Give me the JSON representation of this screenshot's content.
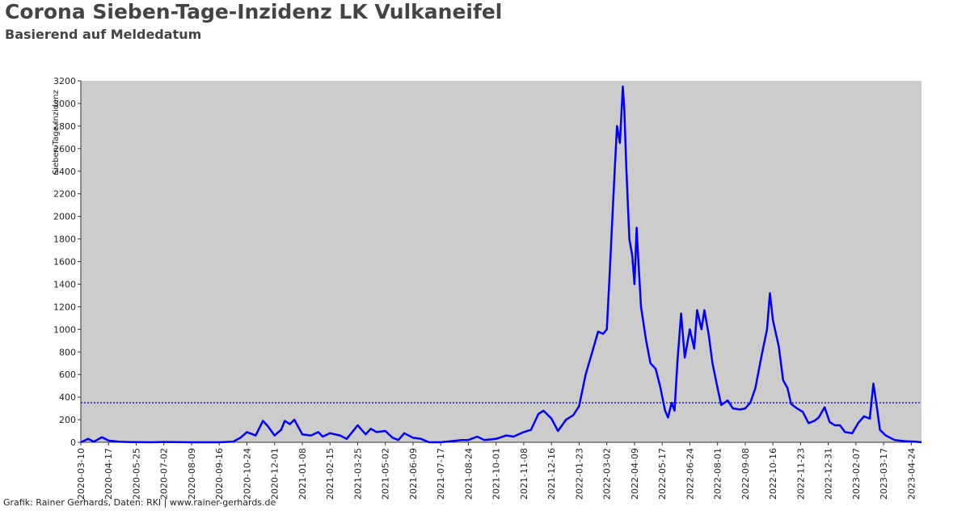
{
  "chart_data": {
    "type": "line",
    "title": "Corona Sieben-Tage-Inzidenz LK Vulkaneifel",
    "subtitle": "Basierend auf Meldedatum",
    "y_label": "Sieben-Tage-Inzidenz",
    "source": "Grafik: Rainer Gerhards, Daten: RKI | www.rainer-gerhards.de",
    "color": "#0000ff",
    "hline": 350,
    "hline_color": "#0000aa",
    "x": [
      "2020-03-10",
      "2020-03-20",
      "2020-03-28",
      "2020-04-08",
      "2020-04-17",
      "2020-05-01",
      "2020-05-15",
      "2020-06-15",
      "2020-07-02",
      "2020-08-09",
      "2020-09-16",
      "2020-10-05",
      "2020-10-15",
      "2020-10-24",
      "2020-11-05",
      "2020-11-15",
      "2020-11-22",
      "2020-12-01",
      "2020-12-10",
      "2020-12-15",
      "2020-12-22",
      "2020-12-28",
      "2021-01-08",
      "2021-01-20",
      "2021-01-30",
      "2021-02-05",
      "2021-02-15",
      "2021-03-01",
      "2021-03-10",
      "2021-03-20",
      "2021-03-25",
      "2021-04-05",
      "2021-04-12",
      "2021-04-20",
      "2021-05-02",
      "2021-05-12",
      "2021-05-20",
      "2021-05-28",
      "2021-06-09",
      "2021-06-20",
      "2021-07-01",
      "2021-07-17",
      "2021-08-01",
      "2021-08-15",
      "2021-08-24",
      "2021-09-05",
      "2021-09-15",
      "2021-10-01",
      "2021-10-15",
      "2021-10-25",
      "2021-11-08",
      "2021-11-18",
      "2021-11-28",
      "2021-12-05",
      "2021-12-16",
      "2021-12-25",
      "2022-01-05",
      "2022-01-15",
      "2022-01-23",
      "2022-02-01",
      "2022-02-10",
      "2022-02-18",
      "2022-02-25",
      "2022-03-02",
      "2022-03-06",
      "2022-03-12",
      "2022-03-16",
      "2022-03-20",
      "2022-03-24",
      "2022-03-26",
      "2022-03-29",
      "2022-04-02",
      "2022-04-06",
      "2022-04-09",
      "2022-04-12",
      "2022-04-14",
      "2022-04-18",
      "2022-04-25",
      "2022-05-01",
      "2022-05-08",
      "2022-05-14",
      "2022-05-21",
      "2022-05-25",
      "2022-05-30",
      "2022-06-03",
      "2022-06-07",
      "2022-06-12",
      "2022-06-17",
      "2022-06-24",
      "2022-06-30",
      "2022-07-04",
      "2022-07-10",
      "2022-07-14",
      "2022-07-20",
      "2022-07-25",
      "2022-08-01",
      "2022-08-06",
      "2022-08-15",
      "2022-08-22",
      "2022-09-01",
      "2022-09-08",
      "2022-09-15",
      "2022-09-22",
      "2022-09-30",
      "2022-10-08",
      "2022-10-12",
      "2022-10-16",
      "2022-10-24",
      "2022-10-30",
      "2022-11-05",
      "2022-11-10",
      "2022-11-18",
      "2022-11-26",
      "2022-12-04",
      "2022-12-12",
      "2022-12-18",
      "2022-12-26",
      "2023-01-02",
      "2023-01-09",
      "2023-01-16",
      "2023-01-23",
      "2023-02-02",
      "2023-02-10",
      "2023-02-18",
      "2023-02-26",
      "2023-03-03",
      "2023-03-08",
      "2023-03-12",
      "2023-03-20",
      "2023-04-01",
      "2023-04-15",
      "2023-04-30",
      "2023-05-08"
    ],
    "values": [
      0,
      30,
      5,
      45,
      15,
      5,
      2,
      0,
      3,
      0,
      0,
      5,
      40,
      90,
      60,
      190,
      140,
      60,
      110,
      190,
      160,
      200,
      70,
      60,
      90,
      50,
      80,
      60,
      30,
      110,
      150,
      70,
      120,
      90,
      100,
      40,
      20,
      80,
      40,
      30,
      0,
      0,
      10,
      20,
      20,
      50,
      20,
      30,
      60,
      50,
      90,
      110,
      250,
      280,
      210,
      100,
      200,
      240,
      320,
      600,
      800,
      980,
      960,
      1000,
      1500,
      2300,
      2800,
      2650,
      3150,
      2950,
      2400,
      1800,
      1650,
      1400,
      1900,
      1650,
      1200,
      900,
      700,
      650,
      500,
      280,
      220,
      350,
      280,
      720,
      1140,
      750,
      1000,
      830,
      1170,
      1000,
      1170,
      950,
      700,
      480,
      330,
      370,
      300,
      290,
      300,
      350,
      480,
      750,
      1000,
      1320,
      1080,
      850,
      550,
      480,
      340,
      300,
      270,
      170,
      190,
      220,
      310,
      180,
      150,
      150,
      90,
      80,
      170,
      230,
      210,
      520,
      300,
      110,
      60,
      20,
      10,
      5,
      0
    ],
    "xlim": [
      "2020-03-10",
      "2023-05-08"
    ],
    "xticks": [
      "2020-03-10",
      "2020-04-17",
      "2020-05-25",
      "2020-07-02",
      "2020-08-09",
      "2020-09-16",
      "2020-10-24",
      "2020-12-01",
      "2021-01-08",
      "2021-02-15",
      "2021-03-25",
      "2021-05-02",
      "2021-06-09",
      "2021-07-17",
      "2021-08-24",
      "2021-10-01",
      "2021-11-08",
      "2021-12-16",
      "2022-01-23",
      "2022-03-02",
      "2022-04-09",
      "2022-05-17",
      "2022-06-24",
      "2022-08-01",
      "2022-09-08",
      "2022-10-16",
      "2022-11-23",
      "2022-12-31",
      "2023-02-07",
      "2023-03-17",
      "2023-04-24"
    ],
    "ylim": [
      0,
      3200
    ],
    "yticks": [
      0,
      200,
      400,
      600,
      800,
      1000,
      1200,
      1400,
      1600,
      1800,
      2000,
      2200,
      2400,
      2600,
      2800,
      3000,
      3200
    ]
  }
}
